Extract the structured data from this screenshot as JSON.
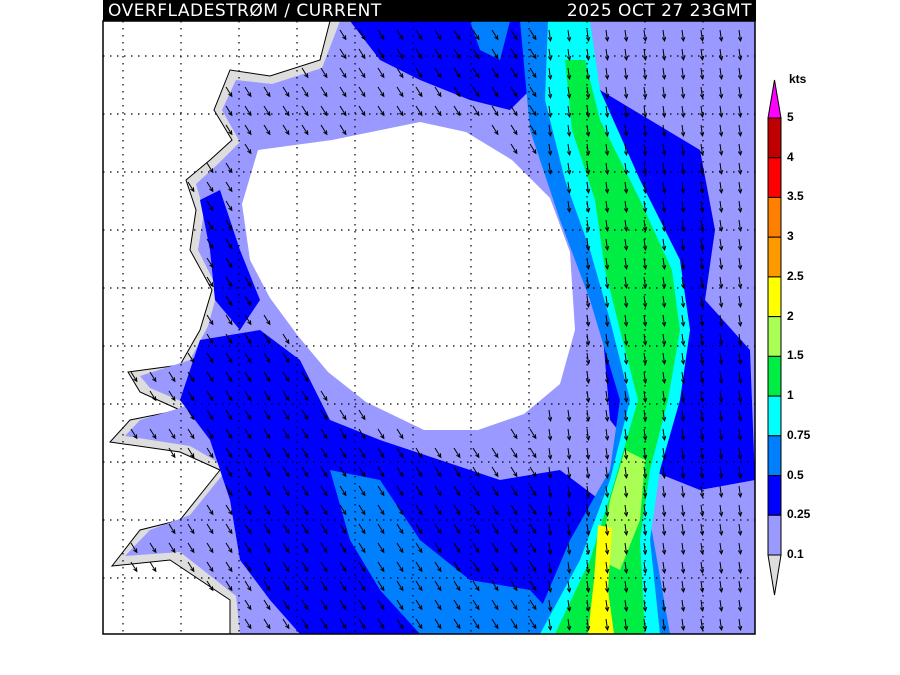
{
  "header": {
    "title": "OVERFLADESTRØM / CURRENT",
    "datetime": "2025 OCT 27 23GMT"
  },
  "legend": {
    "unit": "kts",
    "labels": [
      "5",
      "4",
      "3.5",
      "3",
      "2.5",
      "2",
      "1.5",
      "1",
      "0.75",
      "0.5",
      "0.25",
      "0.1"
    ],
    "colors": [
      "#c00000",
      "#ff0000",
      "#ff7f00",
      "#ff9900",
      "#ffff00",
      "#aaff55",
      "#00ee44",
      "#00ffff",
      "#0080ff",
      "#0000ff",
      "#9999ff"
    ],
    "over_color": "#ff00ff",
    "under_color": "#dddddd"
  },
  "map": {
    "land_color": "#ffffff",
    "arrow_direction": "south-southeast",
    "grid": "dotted"
  }
}
